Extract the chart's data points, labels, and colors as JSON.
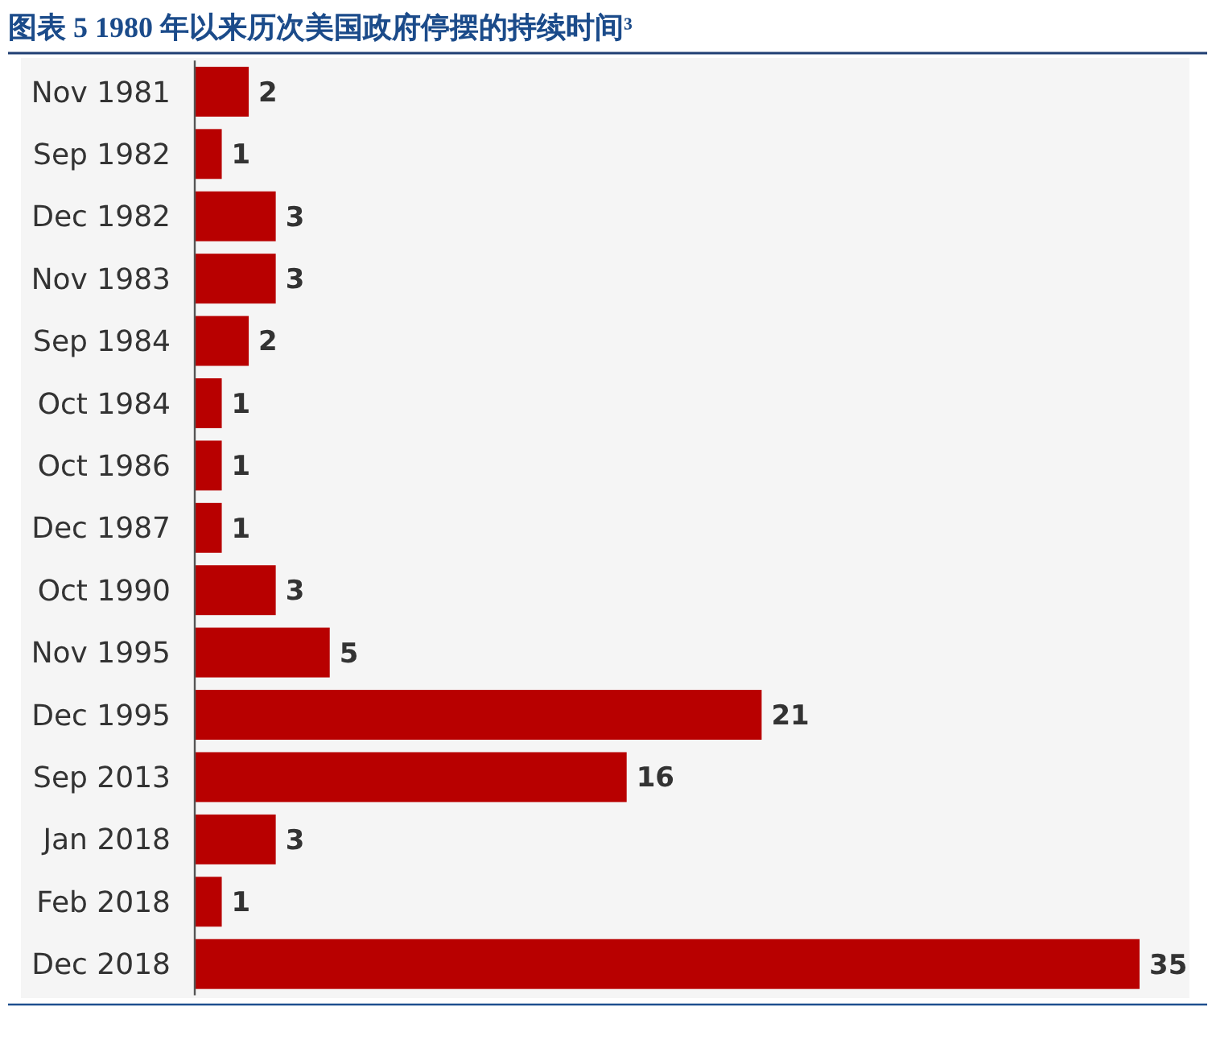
{
  "chart_data": {
    "type": "bar",
    "orientation": "horizontal",
    "title": "图表 5 1980 年以来历次美国政府停摆的持续时间³",
    "categories": [
      "Nov 1981",
      "Sep 1982",
      "Dec 1982",
      "Nov 1983",
      "Sep 1984",
      "Oct 1984",
      "Oct 1986",
      "Dec 1987",
      "Oct 1990",
      "Nov 1995",
      "Dec 1995",
      "Sep 2013",
      "Jan 2018",
      "Feb 2018",
      "Dec 2018"
    ],
    "values": [
      2,
      1,
      3,
      3,
      2,
      1,
      1,
      1,
      3,
      5,
      21,
      16,
      3,
      1,
      35
    ],
    "color": "#b80000",
    "data_labels": true
  }
}
